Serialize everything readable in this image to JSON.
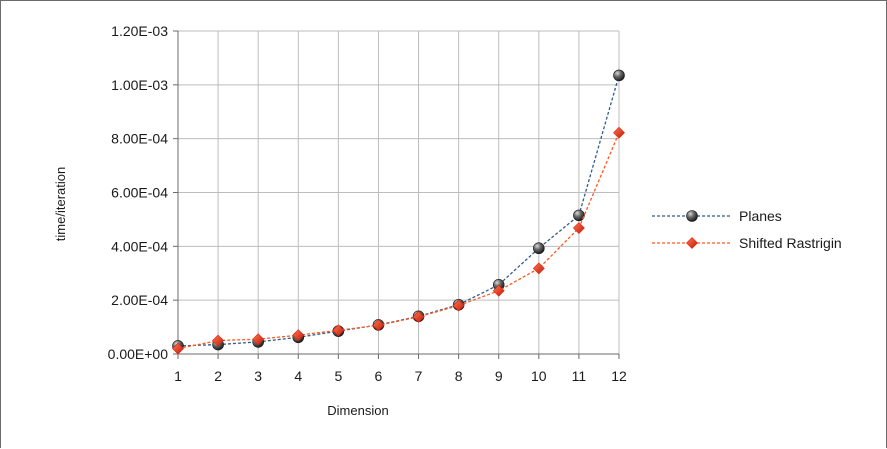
{
  "chart_data": {
    "type": "line",
    "title": "",
    "xlabel": "Dimension",
    "ylabel": "time/iteration",
    "categories": [
      "1",
      "2",
      "3",
      "4",
      "5",
      "6",
      "7",
      "8",
      "9",
      "10",
      "11",
      "12"
    ],
    "ylim": [
      0,
      0.0012
    ],
    "yticks": [
      0,
      0.0002,
      0.0004,
      0.0006,
      0.0008,
      0.001,
      0.0012
    ],
    "ytick_labels": [
      "0.00E+00",
      "2.00E-04",
      "4.00E-04",
      "6.00E-04",
      "8.00E-04",
      "1.00E-03",
      "1.20E-03"
    ],
    "grid": "both",
    "legend": "right",
    "series": [
      {
        "name": "Planes",
        "color": "#2f5d8c",
        "marker": "sphere",
        "marker_color": "#3a3a3a",
        "line_style": "dashed",
        "values": [
          3e-05,
          3.5e-05,
          4.5e-05,
          6.2e-05,
          8.5e-05,
          0.000108,
          0.00014,
          0.000183,
          0.000257,
          0.000393,
          0.000515,
          0.001035
        ]
      },
      {
        "name": "Shifted Rastrigin",
        "color": "#ff5a1f",
        "marker": "diamond",
        "marker_color": "#e02010",
        "line_style": "dashed",
        "values": [
          2e-05,
          5e-05,
          5.5e-05,
          7e-05,
          8.8e-05,
          0.000107,
          0.000138,
          0.00018,
          0.000235,
          0.000318,
          0.000468,
          0.000822
        ]
      }
    ]
  }
}
